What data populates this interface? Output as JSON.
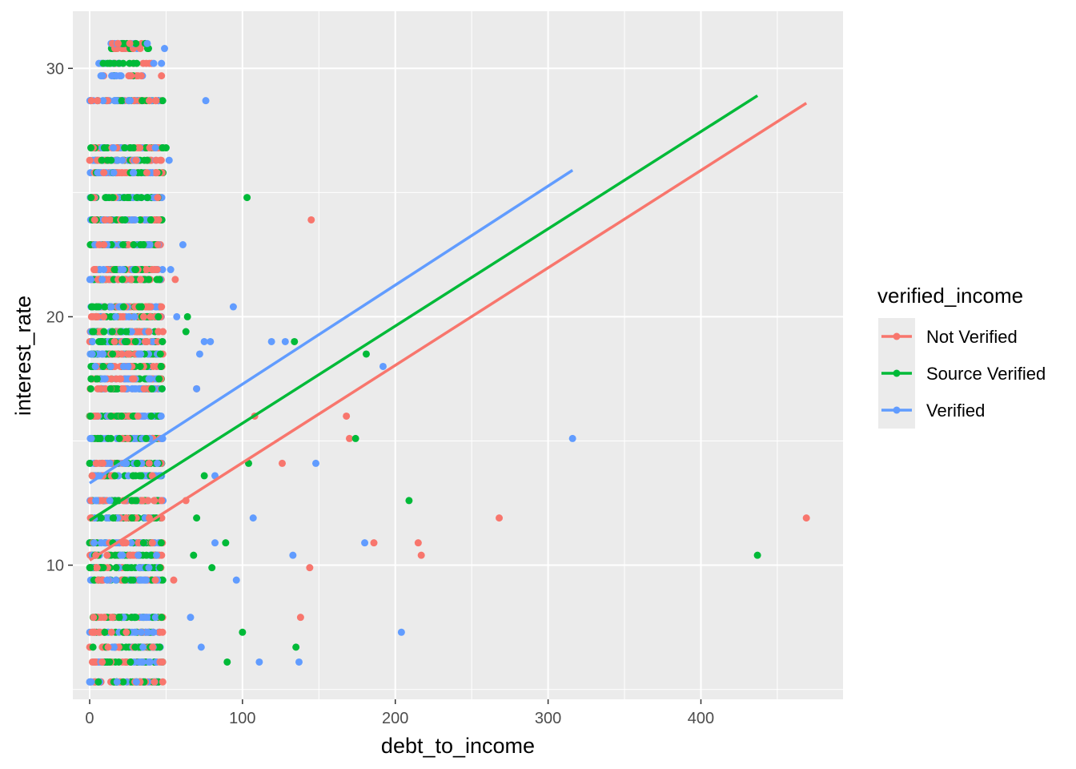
{
  "chart_data": {
    "type": "scatter",
    "title": "",
    "xlabel": "debt_to_income",
    "ylabel": "interest_rate",
    "xlim": [
      -11,
      493
    ],
    "ylim": [
      4.6,
      32.3
    ],
    "x_ticks": [
      0,
      100,
      200,
      300,
      400
    ],
    "x_tick_labels": [
      "0",
      "100",
      "200",
      "300",
      "400"
    ],
    "y_ticks": [
      10,
      20,
      30
    ],
    "y_tick_labels": [
      "10",
      "20",
      "30"
    ],
    "grid": true,
    "legend": {
      "title": "verified_income",
      "placement": "right"
    },
    "y_levels": [
      5.3,
      6.1,
      6.7,
      7.3,
      7.9,
      9.4,
      9.9,
      10.4,
      10.9,
      11.9,
      12.6,
      13.6,
      14.1,
      15.1,
      16.0,
      17.1,
      17.5,
      18.0,
      18.5,
      19.0,
      19.4,
      20.0,
      20.4,
      21.5,
      21.9,
      22.9,
      23.9,
      24.8,
      25.8,
      26.3,
      26.8,
      28.7,
      29.7,
      30.2,
      30.8,
      31.0
    ],
    "series": [
      {
        "name": "Not Verified",
        "color": "#F8766D",
        "trend": {
          "x": [
            0,
            469
          ],
          "y": [
            10.2,
            28.6
          ]
        },
        "outliers": [
          {
            "x": 145,
            "y": 23.9
          },
          {
            "x": 56,
            "y": 21.5
          },
          {
            "x": 168,
            "y": 16.0
          },
          {
            "x": 108,
            "y": 16.0
          },
          {
            "x": 170,
            "y": 15.1
          },
          {
            "x": 126,
            "y": 14.1
          },
          {
            "x": 268,
            "y": 11.9
          },
          {
            "x": 469,
            "y": 11.9
          },
          {
            "x": 186,
            "y": 10.9
          },
          {
            "x": 215,
            "y": 10.9
          },
          {
            "x": 217,
            "y": 10.4
          },
          {
            "x": 144,
            "y": 9.9
          },
          {
            "x": 138,
            "y": 7.9
          },
          {
            "x": 55,
            "y": 9.4
          },
          {
            "x": 70,
            "y": 17.1
          },
          {
            "x": 47,
            "y": 29.7
          },
          {
            "x": 5,
            "y": 28.7
          },
          {
            "x": 45,
            "y": 19.4
          },
          {
            "x": 63,
            "y": 12.6
          }
        ]
      },
      {
        "name": "Source Verified",
        "color": "#00BA38",
        "trend": {
          "x": [
            0,
            437
          ],
          "y": [
            11.8,
            28.9
          ]
        },
        "outliers": [
          {
            "x": 103,
            "y": 24.8
          },
          {
            "x": 134,
            "y": 19.0
          },
          {
            "x": 181,
            "y": 18.5
          },
          {
            "x": 174,
            "y": 15.1
          },
          {
            "x": 104,
            "y": 14.1
          },
          {
            "x": 209,
            "y": 12.6
          },
          {
            "x": 89,
            "y": 10.9
          },
          {
            "x": 437,
            "y": 10.4
          },
          {
            "x": 80,
            "y": 9.9
          },
          {
            "x": 100,
            "y": 7.3
          },
          {
            "x": 135,
            "y": 6.7
          },
          {
            "x": 90,
            "y": 6.1
          },
          {
            "x": 64,
            "y": 20.0
          },
          {
            "x": 63,
            "y": 19.4
          },
          {
            "x": 70,
            "y": 11.9
          },
          {
            "x": 75,
            "y": 13.6
          },
          {
            "x": 68,
            "y": 10.4
          },
          {
            "x": 16,
            "y": 30.2
          },
          {
            "x": 50,
            "y": 26.8
          }
        ]
      },
      {
        "name": "Verified",
        "color": "#619CFF",
        "trend": {
          "x": [
            0,
            316
          ],
          "y": [
            13.3,
            25.9
          ]
        },
        "outliers": [
          {
            "x": 76,
            "y": 28.7
          },
          {
            "x": 52,
            "y": 26.3
          },
          {
            "x": 61,
            "y": 22.9
          },
          {
            "x": 53,
            "y": 21.9
          },
          {
            "x": 94,
            "y": 20.4
          },
          {
            "x": 57,
            "y": 20.0
          },
          {
            "x": 75,
            "y": 19.0
          },
          {
            "x": 79,
            "y": 19.0
          },
          {
            "x": 119,
            "y": 19.0
          },
          {
            "x": 128,
            "y": 19.0
          },
          {
            "x": 72,
            "y": 18.5
          },
          {
            "x": 192,
            "y": 18.0
          },
          {
            "x": 316,
            "y": 15.1
          },
          {
            "x": 148,
            "y": 14.1
          },
          {
            "x": 107,
            "y": 11.9
          },
          {
            "x": 180,
            "y": 10.9
          },
          {
            "x": 133,
            "y": 10.4
          },
          {
            "x": 96,
            "y": 9.4
          },
          {
            "x": 204,
            "y": 7.3
          },
          {
            "x": 111,
            "y": 6.1
          },
          {
            "x": 137,
            "y": 6.1
          },
          {
            "x": 47,
            "y": 30.2
          },
          {
            "x": 49,
            "y": 30.8
          },
          {
            "x": 82,
            "y": 10.9
          },
          {
            "x": 66,
            "y": 7.9
          },
          {
            "x": 73,
            "y": 6.7
          },
          {
            "x": 70,
            "y": 17.1
          },
          {
            "x": 82,
            "y": 13.6
          }
        ]
      }
    ]
  }
}
